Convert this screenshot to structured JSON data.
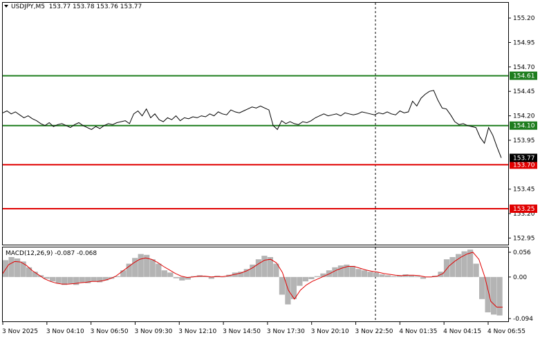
{
  "header": {
    "symbol": "USDJPY,M5",
    "ohlc": "153.77 153.78 153.76 153.77"
  },
  "macd_panel": {
    "label": "MACD(12,26,9)",
    "values": "-0.087 -0.068"
  },
  "colors": {
    "support_green": "#1e7d1e",
    "resistance_red": "#e00000",
    "price_line": "#000000",
    "macd_hist": "#b4b4b4",
    "macd_signal": "#e00000"
  },
  "chart_data": [
    {
      "type": "line",
      "series": [
        {
          "values": [
            154.23,
            154.25,
            154.22,
            154.24,
            154.21,
            154.18,
            154.2,
            154.17,
            154.15,
            154.12,
            154.1,
            154.13,
            154.09,
            154.11,
            154.12,
            154.1,
            154.08,
            154.11,
            154.13,
            154.1,
            154.08,
            154.06,
            154.09,
            154.07,
            154.1,
            154.12,
            154.11,
            154.13,
            154.14,
            154.15,
            154.12,
            154.22,
            154.25,
            154.2,
            154.27,
            154.18,
            154.22,
            154.16,
            154.14,
            154.18,
            154.16,
            154.2,
            154.15,
            154.18,
            154.17,
            154.19,
            154.18,
            154.2,
            154.19,
            154.22,
            154.2,
            154.24,
            154.22,
            154.21,
            154.26,
            154.24,
            154.23,
            154.25,
            154.27,
            154.29,
            154.28,
            154.3,
            154.28,
            154.26,
            154.1,
            154.06,
            154.15,
            154.12,
            154.14,
            154.12,
            154.11,
            154.14,
            154.13,
            154.15,
            154.18,
            154.2,
            154.22,
            154.2,
            154.21,
            154.22,
            154.2,
            154.23,
            154.22,
            154.21,
            154.22,
            154.24,
            154.23,
            154.22,
            154.21,
            154.23,
            154.22,
            154.24,
            154.22,
            154.21,
            154.25,
            154.23,
            154.24,
            154.35,
            154.3,
            154.38,
            154.42,
            154.45,
            154.46,
            154.36,
            154.28,
            154.27,
            154.21,
            154.14,
            154.11,
            154.12,
            154.1,
            154.09,
            154.08,
            153.98,
            153.92,
            154.08,
            154.0,
            153.88,
            153.77
          ]
        }
      ],
      "x_tick_labels": [
        "3 Nov 2025",
        "3 Nov 04:10",
        "3 Nov 06:50",
        "3 Nov 09:30",
        "3 Nov 12:10",
        "3 Nov 14:50",
        "3 Nov 17:30",
        "3 Nov 20:10",
        "3 Nov 22:50",
        "4 Nov 01:35",
        "4 Nov 04:15",
        "4 Nov 06:55"
      ],
      "y_tick_labels": [
        "155.20",
        "154.95",
        "154.70",
        "154.45",
        "154.20",
        "153.95",
        "153.45",
        "153.20",
        "152.95"
      ],
      "ylim": [
        152.925,
        155.25
      ],
      "horizontal_levels": [
        {
          "label": "154.61",
          "value": 154.61,
          "color": "green"
        },
        {
          "label": "154.10",
          "value": 154.1,
          "color": "green"
        },
        {
          "label": "153.70",
          "value": 153.7,
          "color": "red"
        },
        {
          "label": "153.25",
          "value": 153.25,
          "color": "red"
        }
      ],
      "current_price_label": "153.77",
      "current_price": 153.77
    },
    {
      "type": "bar",
      "histogram": [
        0.038,
        0.045,
        0.042,
        0.035,
        0.022,
        0.012,
        0.004,
        -0.004,
        -0.01,
        -0.014,
        -0.018,
        -0.015,
        -0.018,
        -0.012,
        -0.014,
        -0.01,
        -0.012,
        -0.008,
        -0.004,
        0.002,
        0.015,
        0.03,
        0.043,
        0.052,
        0.05,
        0.04,
        0.03,
        0.015,
        0.01,
        -0.003,
        -0.008,
        -0.006,
        0.002,
        0.004,
        0.002,
        -0.004,
        0.003,
        0.0,
        0.005,
        0.01,
        0.012,
        0.018,
        0.028,
        0.04,
        0.048,
        0.045,
        0.03,
        -0.04,
        -0.062,
        -0.05,
        -0.02,
        -0.01,
        -0.005,
        0.002,
        0.008,
        0.015,
        0.022,
        0.026,
        0.028,
        0.025,
        0.018,
        0.015,
        0.012,
        0.01,
        0.006,
        0.004,
        0.002,
        0.003,
        0.006,
        0.004,
        0.002,
        -0.004,
        0.0,
        0.003,
        0.012,
        0.04,
        0.045,
        0.052,
        0.058,
        0.062,
        0.03,
        -0.05,
        -0.08,
        -0.085,
        -0.087
      ],
      "signal": [
        0.008,
        0.028,
        0.035,
        0.034,
        0.026,
        0.014,
        0.005,
        -0.004,
        -0.01,
        -0.014,
        -0.016,
        -0.016,
        -0.015,
        -0.013,
        -0.012,
        -0.01,
        -0.01,
        -0.008,
        -0.004,
        0.002,
        0.012,
        0.022,
        0.032,
        0.04,
        0.043,
        0.04,
        0.033,
        0.024,
        0.016,
        0.008,
        0.002,
        -0.001,
        0.0,
        0.002,
        0.002,
        0.0,
        0.001,
        0.001,
        0.003,
        0.006,
        0.009,
        0.014,
        0.021,
        0.03,
        0.038,
        0.04,
        0.032,
        0.01,
        -0.03,
        -0.05,
        -0.03,
        -0.018,
        -0.01,
        -0.004,
        0.002,
        0.008,
        0.015,
        0.02,
        0.024,
        0.024,
        0.02,
        0.016,
        0.013,
        0.011,
        0.008,
        0.006,
        0.004,
        0.003,
        0.004,
        0.004,
        0.003,
        0.0,
        0.0,
        0.002,
        0.008,
        0.025,
        0.036,
        0.045,
        0.052,
        0.056,
        0.04,
        0.0,
        -0.055,
        -0.068,
        -0.068
      ],
      "y_tick_labels": [
        "0.056",
        "0.00",
        "-0.094"
      ],
      "ylim": [
        -0.094,
        0.056
      ]
    }
  ]
}
